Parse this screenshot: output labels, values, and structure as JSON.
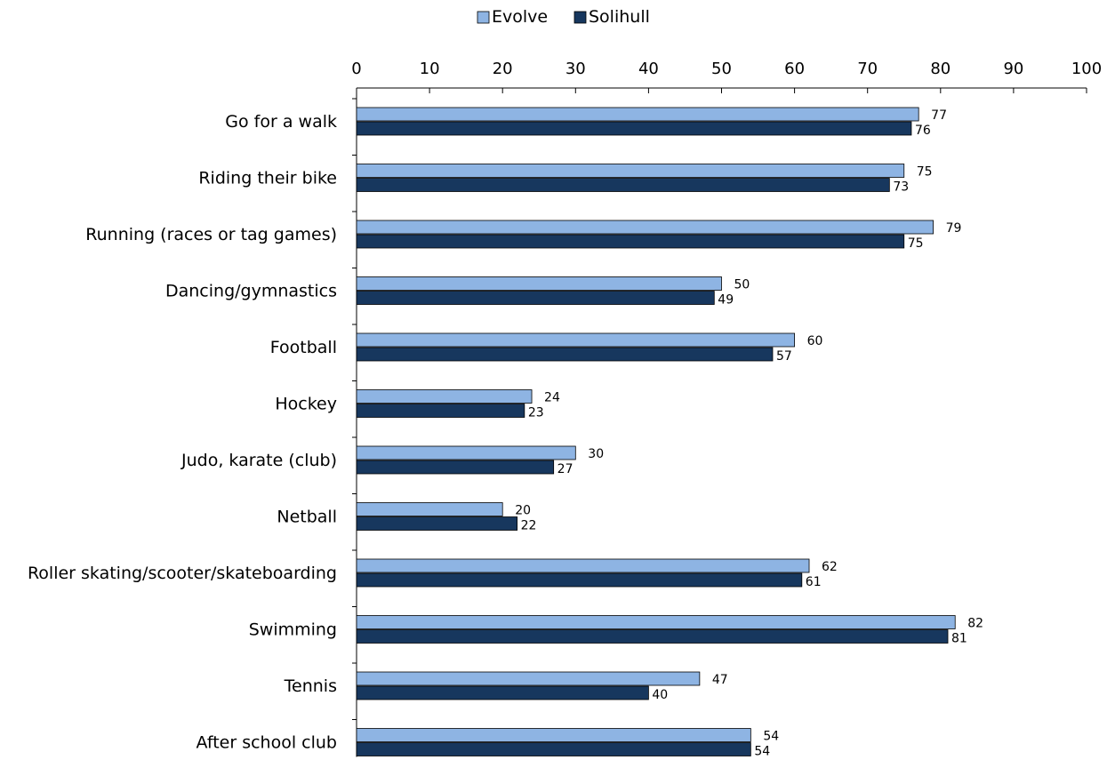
{
  "chart_data": {
    "type": "bar",
    "orientation": "horizontal",
    "categories": [
      "Go for a walk",
      "Riding their bike",
      "Running (races or tag games)",
      "Dancing/gymnastics",
      "Football",
      "Hockey",
      "Judo, karate (club)",
      "Netball",
      "Roller skating/scooter/skateboarding",
      "Swimming",
      "Tennis",
      "After school club"
    ],
    "series": [
      {
        "name": "Evolve",
        "color": "#8eb4e3",
        "values": [
          77,
          75,
          79,
          50,
          60,
          24,
          30,
          20,
          62,
          82,
          47,
          54
        ]
      },
      {
        "name": "Solihull",
        "color": "#17375e",
        "values": [
          76,
          73,
          75,
          49,
          57,
          23,
          27,
          22,
          61,
          81,
          40,
          54
        ]
      }
    ],
    "xlim": [
      0,
      100
    ],
    "xticks": [
      0,
      10,
      20,
      30,
      40,
      50,
      60,
      70,
      80,
      90,
      100
    ],
    "x_axis_position": "top",
    "legend_position": "top-center",
    "grid": false,
    "data_labels": true
  }
}
